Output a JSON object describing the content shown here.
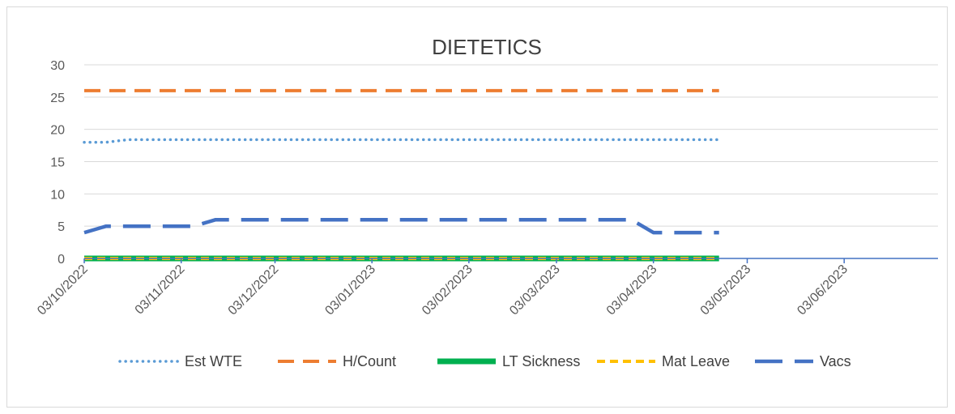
{
  "chart_data": {
    "type": "line",
    "title": "DIETETICS",
    "xlabel": "",
    "ylabel": "",
    "ylim": [
      0,
      30
    ],
    "yticks": [
      0,
      5,
      10,
      15,
      20,
      25,
      30
    ],
    "xlim": [
      "2022-10-03",
      "2023-07-03"
    ],
    "xtick_labels": [
      "03/10/2022",
      "03/11/2022",
      "03/12/2022",
      "03/01/2023",
      "03/02/2023",
      "03/03/2023",
      "03/04/2023",
      "03/05/2023",
      "03/06/2023"
    ],
    "xtick_dates": [
      "2022-10-03",
      "2022-11-03",
      "2022-12-03",
      "2023-01-03",
      "2023-02-03",
      "2023-03-03",
      "2023-04-03",
      "2023-05-03",
      "2023-06-03"
    ],
    "grid": "horizontal",
    "legend_position": "bottom",
    "series": [
      {
        "name": "Est WTE",
        "color": "#5B9BD5",
        "style": "dotted",
        "points": [
          [
            "2022-10-03",
            18.0
          ],
          [
            "2022-10-10",
            18.0
          ],
          [
            "2022-10-17",
            18.4
          ],
          [
            "2023-04-24",
            18.4
          ]
        ]
      },
      {
        "name": "H/Count",
        "color": "#ED7D31",
        "style": "dashed",
        "points": [
          [
            "2022-10-03",
            26
          ],
          [
            "2023-04-24",
            26
          ]
        ]
      },
      {
        "name": "LT Sickness",
        "color": "#00B050",
        "style": "solid",
        "points": [
          [
            "2022-10-03",
            0
          ],
          [
            "2023-04-24",
            0
          ]
        ]
      },
      {
        "name": "Mat Leave",
        "color": "#FFC000",
        "style": "dashed",
        "points": [
          [
            "2022-10-03",
            0
          ],
          [
            "2023-04-24",
            0
          ]
        ]
      },
      {
        "name": "Vacs",
        "color": "#4472C4",
        "style": "longdash",
        "points": [
          [
            "2022-10-03",
            4
          ],
          [
            "2022-10-10",
            5
          ],
          [
            "2022-11-07",
            5
          ],
          [
            "2022-11-14",
            6
          ],
          [
            "2023-03-27",
            6
          ],
          [
            "2023-04-03",
            4
          ],
          [
            "2023-04-24",
            4
          ]
        ]
      }
    ]
  }
}
